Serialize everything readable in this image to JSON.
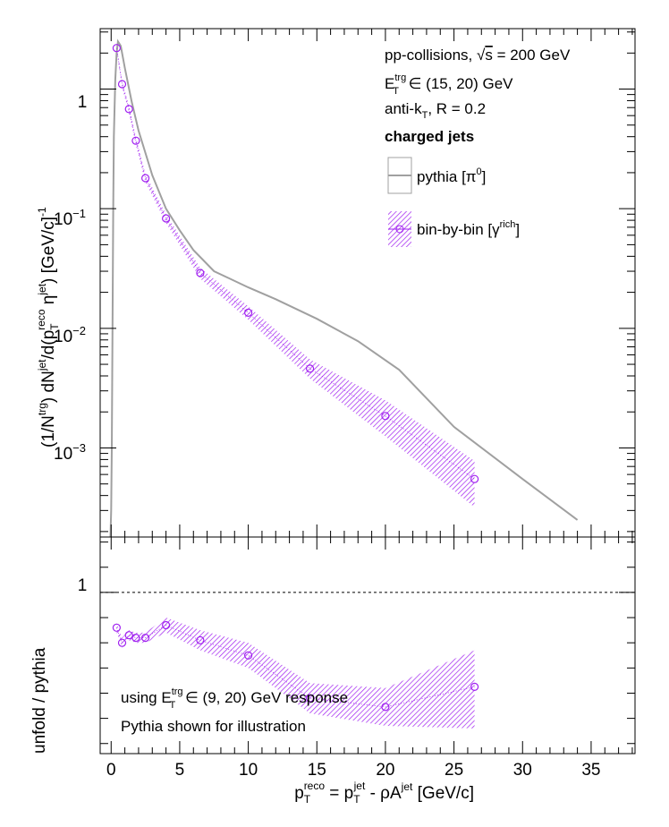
{
  "chart_data": [
    {
      "type": "line",
      "panel": "top",
      "yscale": "log",
      "xlim": [
        -0.8,
        38.2
      ],
      "ylim": [
        0.00018,
        3.2
      ],
      "x_ticks": [
        "0",
        "5",
        "10",
        "15",
        "20",
        "25",
        "30",
        "35"
      ],
      "y_ticks": [
        {
          "value": 1,
          "label": "1"
        },
        {
          "value": 0.1,
          "base": "10",
          "exp": "−1"
        },
        {
          "value": 0.01,
          "base": "10",
          "exp": "−2"
        },
        {
          "value": 0.001,
          "base": "10",
          "exp": "−3"
        }
      ],
      "ylabel": {
        "p1": "(1/N",
        "trg": "trg",
        "p2": ") dN",
        "jet": "jet",
        "p3": "/d(p",
        "T": "T",
        "reco": "reco",
        "eta": " η",
        "jet2": "jet",
        "p4": ") [GeV/c]",
        "minus1": "-1"
      },
      "annotations": {
        "line1": {
          "p1": "pp-collisions, ",
          "sqrt": "√",
          "s": "s",
          "p2": " = 200 GeV"
        },
        "line2": {
          "E": "E",
          "trg": "trg",
          "T": "T",
          "p2": " ∈ (15, 20) GeV"
        },
        "line3": {
          "p1": "anti-k",
          "T": "T",
          "p2": ", R = 0.2"
        },
        "line4": "charged jets"
      },
      "legend": {
        "pythia": {
          "p1": "pythia [π",
          "sup": "0",
          "p2": "]"
        },
        "binbybin": {
          "p1": "bin-by-bin [γ",
          "sup": "rich",
          "p2": "]"
        }
      },
      "series": [
        {
          "kind": "curve",
          "color": "#a0a0a0",
          "x": [
            -0.05,
            0.0,
            0.05,
            0.1,
            0.15,
            0.2,
            0.3,
            0.4,
            0.5,
            0.7,
            1.0,
            1.5,
            2.0,
            3.0,
            4.0,
            5.0,
            6.0,
            7.5,
            10.0,
            12.0,
            15.0,
            18.0,
            21.0,
            25.0,
            30.0,
            34.0
          ],
          "y": [
            0.00018,
            0.0003,
            0.001,
            0.01,
            0.1,
            0.4,
            1.2,
            2.0,
            2.5,
            2.3,
            1.5,
            0.78,
            0.45,
            0.19,
            0.1,
            0.066,
            0.045,
            0.03,
            0.022,
            0.0175,
            0.012,
            0.0078,
            0.0045,
            0.0015,
            0.00055,
            0.00025
          ]
        },
        {
          "kind": "markers_band",
          "color": "#a020f0",
          "x": [
            0.4,
            0.8,
            1.3,
            1.8,
            2.5,
            4.0,
            6.5,
            10.0,
            14.5,
            20.0,
            26.5
          ],
          "y": [
            2.2,
            1.1,
            0.68,
            0.37,
            0.18,
            0.083,
            0.029,
            0.0135,
            0.0046,
            0.00185,
            0.00055
          ],
          "band_lo": [
            2.05,
            1.03,
            0.63,
            0.34,
            0.166,
            0.076,
            0.026,
            0.0118,
            0.0038,
            0.00125,
            0.00032
          ],
          "band_hi": [
            2.35,
            1.17,
            0.73,
            0.4,
            0.195,
            0.09,
            0.032,
            0.0153,
            0.0055,
            0.0025,
            0.00078
          ]
        }
      ]
    },
    {
      "type": "scatter",
      "panel": "bottom",
      "xlim": [
        -0.8,
        38.2
      ],
      "ylim": [
        0.36,
        1.22
      ],
      "y_ticks": [
        {
          "value": 1,
          "label": "1"
        }
      ],
      "reference_line": 1,
      "ylabel": "unfold / pythia",
      "xlabel": {
        "p": "p",
        "T": "T",
        "reco": "reco",
        "eq": " = p",
        "T2": "T",
        "jet": "jet",
        "tail": " - ρA",
        "jet2": "jet",
        "unit": " [GeV/c]"
      },
      "annotations": {
        "line1": {
          "p1": "using E",
          "trg": "trg",
          "T": "T",
          "p2": " ∈ (9, 20) GeV response"
        },
        "line2": "Pythia shown for illustration"
      },
      "series": [
        {
          "kind": "markers_band",
          "color": "#a020f0",
          "x": [
            0.4,
            0.8,
            1.3,
            1.8,
            2.5,
            4.0,
            6.5,
            10.0,
            14.5,
            20.0,
            26.5
          ],
          "y": [
            0.86,
            0.8,
            0.83,
            0.82,
            0.82,
            0.87,
            0.81,
            0.75,
            0.58,
            0.545,
            0.625
          ],
          "band_lo": [
            0.84,
            0.78,
            0.81,
            0.8,
            0.8,
            0.84,
            0.77,
            0.7,
            0.52,
            0.47,
            0.46
          ],
          "band_hi": [
            0.88,
            0.82,
            0.85,
            0.84,
            0.84,
            0.9,
            0.85,
            0.8,
            0.64,
            0.62,
            0.77
          ]
        }
      ]
    }
  ]
}
